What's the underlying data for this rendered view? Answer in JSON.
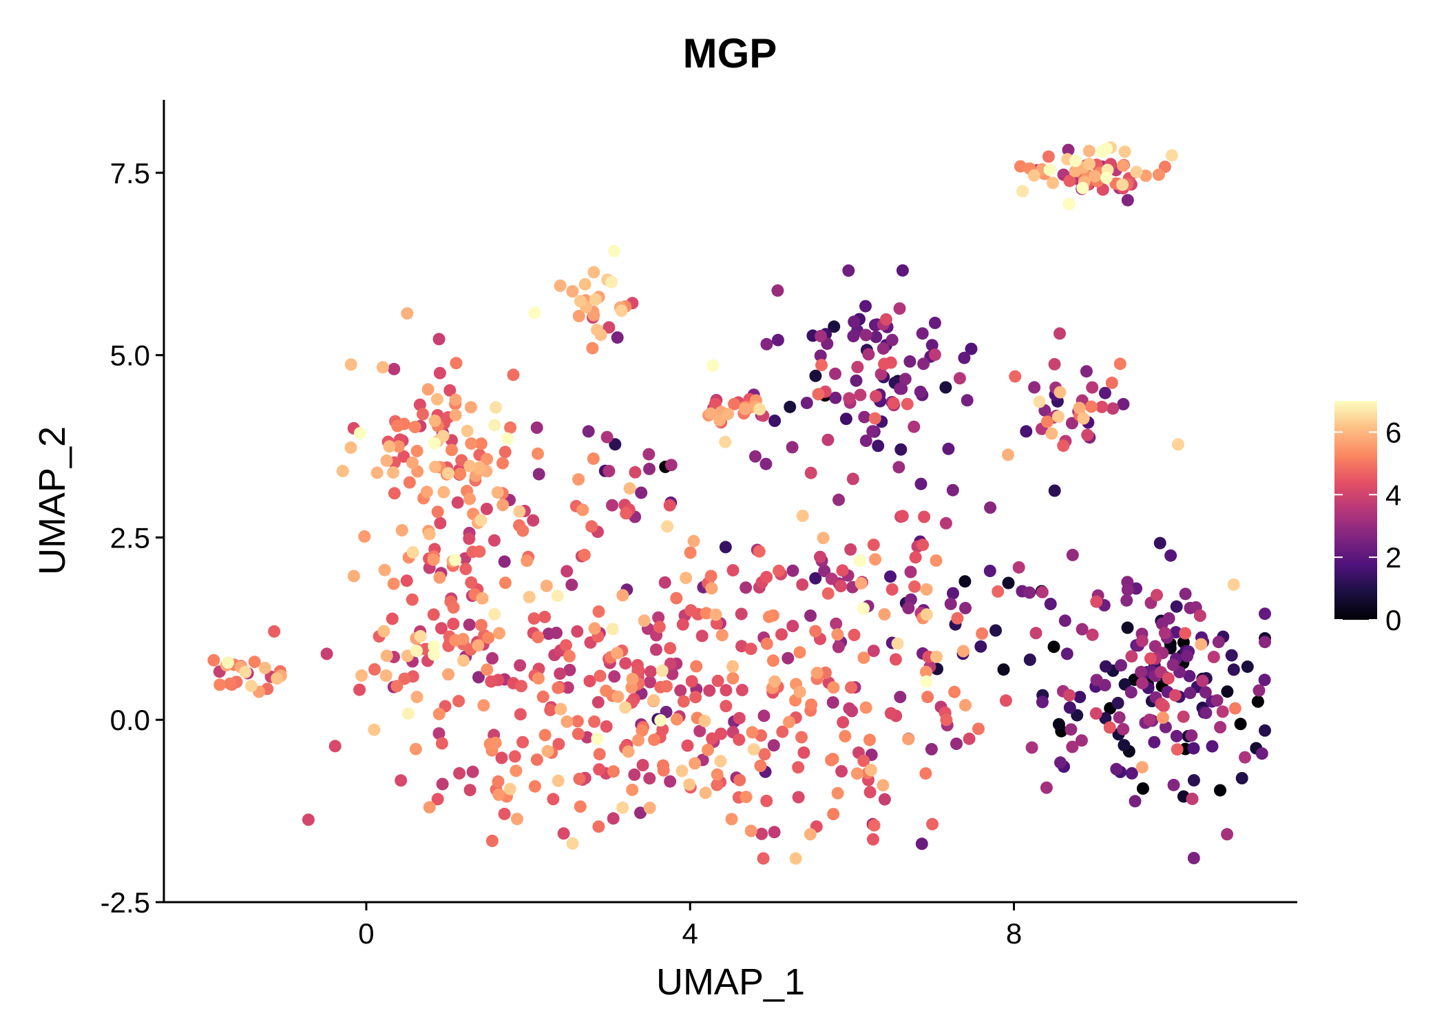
{
  "chart_data": {
    "type": "scatter",
    "title": "MGP",
    "xlabel": "UMAP_1",
    "ylabel": "UMAP_2",
    "xlim": [
      -2.5,
      11.5
    ],
    "ylim": [
      -2.5,
      8.5
    ],
    "xticks": [
      0,
      4,
      8
    ],
    "xtick_labels": [
      "0",
      "4",
      "8"
    ],
    "yticks": [
      -2.5,
      0.0,
      2.5,
      5.0,
      7.5
    ],
    "ytick_labels": [
      "-2.5",
      "0.0",
      "2.5",
      "5.0",
      "7.5"
    ],
    "grid": false,
    "colorbar": {
      "palette": "magma",
      "min": 0,
      "max": 7,
      "ticks": [
        0,
        2,
        4,
        6
      ],
      "tick_labels": [
        "0",
        "2",
        "4",
        "6"
      ],
      "position": "right"
    },
    "clusters": [
      {
        "name": "far-left",
        "cx": -1.5,
        "cy": 0.6,
        "sx": 0.3,
        "sy": 0.18,
        "n": 22,
        "mean": 5.6,
        "sd": 0.9
      },
      {
        "name": "left-arm-upper",
        "cx": 0.9,
        "cy": 3.8,
        "sx": 0.45,
        "sy": 0.55,
        "n": 80,
        "mean": 5.2,
        "sd": 0.9
      },
      {
        "name": "left-arm-mid",
        "cx": 1.4,
        "cy": 2.3,
        "sx": 0.55,
        "sy": 0.8,
        "n": 60,
        "mean": 4.9,
        "sd": 0.9
      },
      {
        "name": "left-bridge",
        "cx": 0.8,
        "cy": 1.1,
        "sx": 0.5,
        "sy": 0.35,
        "n": 30,
        "mean": 5.2,
        "sd": 1.0
      },
      {
        "name": "top-tuft",
        "cx": 2.8,
        "cy": 5.7,
        "sx": 0.3,
        "sy": 0.35,
        "n": 25,
        "mean": 6.1,
        "sd": 0.8
      },
      {
        "name": "main-body",
        "cx": 4.0,
        "cy": 0.2,
        "sx": 1.9,
        "sy": 0.95,
        "n": 360,
        "mean": 4.7,
        "sd": 0.95
      },
      {
        "name": "main-upper-right",
        "cx": 5.6,
        "cy": 2.0,
        "sx": 0.9,
        "sy": 0.5,
        "n": 60,
        "mean": 4.0,
        "sd": 1.2
      },
      {
        "name": "mid-band",
        "cx": 3.6,
        "cy": 3.2,
        "sx": 1.0,
        "sy": 0.7,
        "n": 45,
        "mean": 3.6,
        "sd": 1.6
      },
      {
        "name": "mid-top-small",
        "cx": 4.5,
        "cy": 4.25,
        "sx": 0.3,
        "sy": 0.12,
        "n": 20,
        "mean": 5.0,
        "sd": 0.8
      },
      {
        "name": "purple-top",
        "cx": 6.3,
        "cy": 4.7,
        "sx": 0.55,
        "sy": 0.7,
        "n": 90,
        "mean": 2.8,
        "sd": 0.9
      },
      {
        "name": "right-connect",
        "cx": 7.3,
        "cy": 1.7,
        "sx": 0.4,
        "sy": 0.5,
        "n": 25,
        "mean": 2.6,
        "sd": 1.4
      },
      {
        "name": "top-right",
        "cx": 8.9,
        "cy": 7.5,
        "sx": 0.45,
        "sy": 0.22,
        "n": 60,
        "mean": 5.3,
        "sd": 1.3
      },
      {
        "name": "right-mid",
        "cx": 8.7,
        "cy": 4.2,
        "sx": 0.4,
        "sy": 0.35,
        "n": 40,
        "mean": 3.6,
        "sd": 1.5
      },
      {
        "name": "right-cluster",
        "cx": 9.8,
        "cy": 0.4,
        "sx": 0.75,
        "sy": 0.75,
        "n": 170,
        "mean": 2.4,
        "sd": 1.3
      }
    ]
  }
}
